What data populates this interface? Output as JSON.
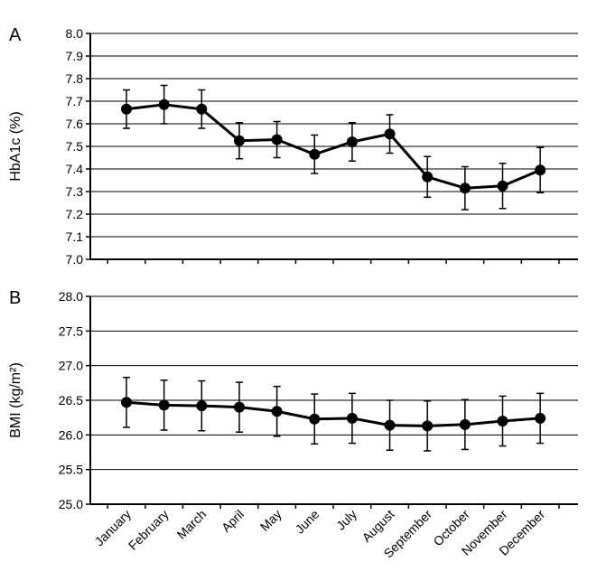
{
  "chart_data": [
    {
      "type": "line",
      "panel_label": "A",
      "ylabel": "HbA1c (%)",
      "series": [
        {
          "color": "#000000",
          "values": [
            7.665,
            7.685,
            7.665,
            7.525,
            7.53,
            7.465,
            7.52,
            7.555,
            7.365,
            7.315,
            7.325,
            7.395
          ],
          "errors": [
            0.085,
            0.085,
            0.085,
            0.08,
            0.08,
            0.085,
            0.085,
            0.085,
            0.09,
            0.095,
            0.1,
            0.1
          ]
        }
      ],
      "ylim": [
        7.0,
        8.0
      ],
      "yticks": [
        {
          "value": 7.0,
          "label": "7.0"
        },
        7.1,
        7.2,
        7.3,
        7.4,
        7.5,
        7.6,
        7.7,
        7.8,
        7.9,
        {
          "value": 8.0,
          "label": "8.0"
        }
      ],
      "grid": true
    },
    {
      "type": "line",
      "panel_label": "B",
      "ylabel": "BMI (kg/m²)",
      "categories": [
        "January",
        "February",
        "March",
        "April",
        "May",
        "June",
        "July",
        "August",
        "September",
        "October",
        "November",
        "December"
      ],
      "series": [
        {
          "color": "#000000",
          "values": [
            26.47,
            26.43,
            26.42,
            26.4,
            26.34,
            26.23,
            26.24,
            26.14,
            26.13,
            26.15,
            26.2,
            26.24
          ],
          "errors": [
            0.36,
            0.36,
            0.36,
            0.36,
            0.36,
            0.36,
            0.36,
            0.36,
            0.36,
            0.36,
            0.36,
            0.36
          ]
        }
      ],
      "ylim": [
        25.0,
        28.0
      ],
      "yticks": [
        {
          "value": 25.0,
          "label": "25.0"
        },
        25.5,
        {
          "value": 26.0,
          "label": "26.0"
        },
        26.5,
        {
          "value": 27.0,
          "label": "27.0"
        },
        27.5,
        {
          "value": 28.0,
          "label": "28.0"
        }
      ],
      "grid": true
    }
  ]
}
